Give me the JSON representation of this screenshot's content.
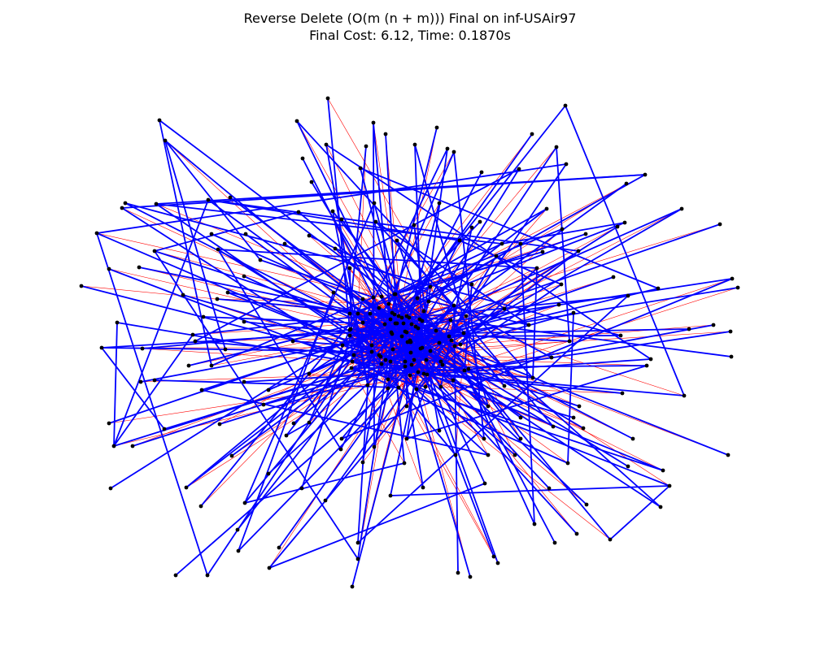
{
  "figure": {
    "title": "Reverse Delete (O(m (n + m))) Final on inf-USAir97",
    "subtitle": "Final Cost: 6.12, Time: 0.1870s"
  },
  "graph": {
    "kept_edge_color": "#0000ff",
    "removed_edge_color": "#ff0000",
    "node_color": "#000000"
  }
}
